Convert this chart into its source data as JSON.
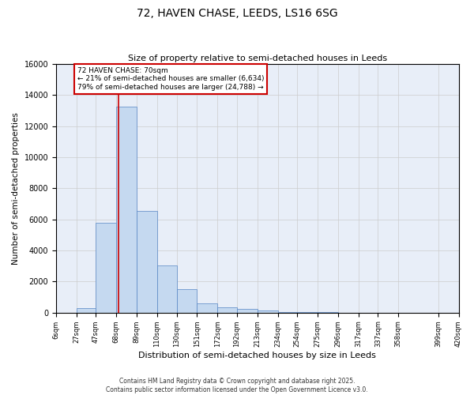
{
  "title": "72, HAVEN CHASE, LEEDS, LS16 6SG",
  "subtitle": "Size of property relative to semi-detached houses in Leeds",
  "xlabel": "Distribution of semi-detached houses by size in Leeds",
  "ylabel": "Number of semi-detached properties",
  "property_size": 70,
  "annotation_text": "72 HAVEN CHASE: 70sqm\n← 21% of semi-detached houses are smaller (6,634)\n79% of semi-detached houses are larger (24,788) →",
  "bin_edges": [
    6,
    27,
    47,
    68,
    89,
    110,
    130,
    151,
    172,
    192,
    213,
    234,
    254,
    275,
    296,
    317,
    337,
    358,
    399,
    420
  ],
  "bar_heights": [
    0,
    300,
    5800,
    13250,
    6550,
    3050,
    1500,
    600,
    350,
    250,
    130,
    60,
    60,
    30,
    10,
    10,
    5,
    5,
    0
  ],
  "bar_color": "#c5d9f0",
  "bar_edge_color": "#5585c5",
  "grid_color": "#cccccc",
  "background_color": "#e8eef8",
  "red_line_color": "#cc0000",
  "annotation_box_color": "#cc0000",
  "ylim": [
    0,
    16000
  ],
  "yticks": [
    0,
    2000,
    4000,
    6000,
    8000,
    10000,
    12000,
    14000,
    16000
  ],
  "footer_line1": "Contains HM Land Registry data © Crown copyright and database right 2025.",
  "footer_line2": "Contains public sector information licensed under the Open Government Licence v3.0."
}
